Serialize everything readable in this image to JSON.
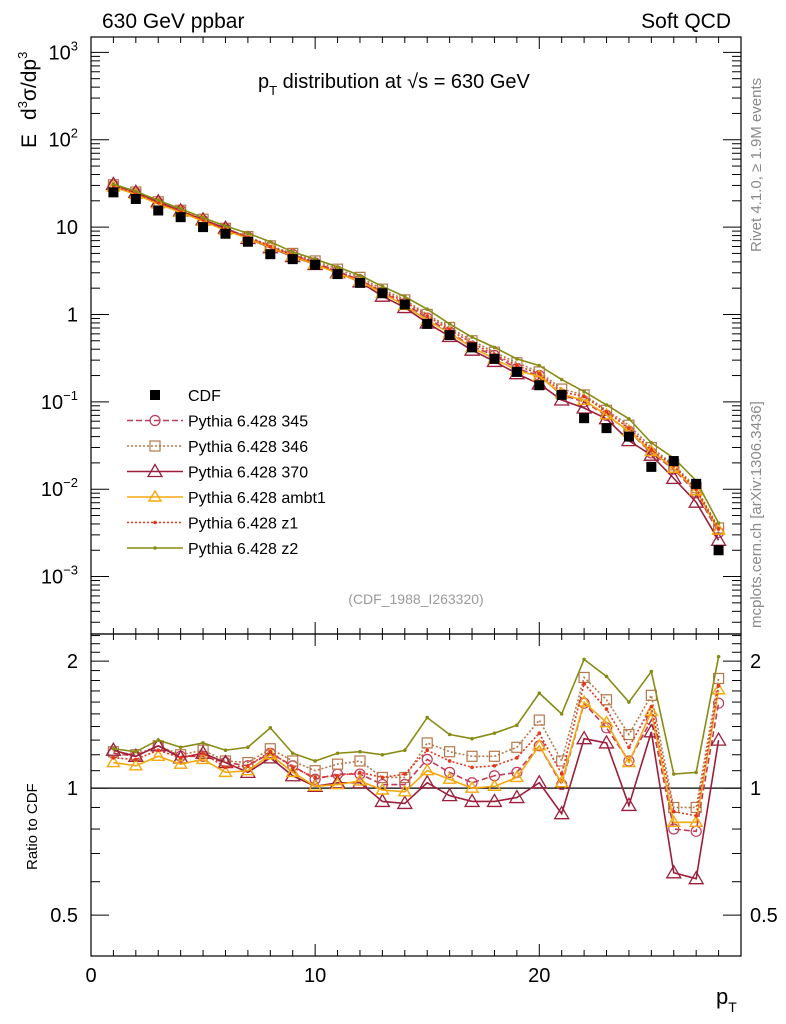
{
  "header": {
    "left_title": "630 GeV ppbar",
    "right_title": "Soft QCD",
    "side_rivet": "Rivet 4.1.0, ≥ 1.9M events",
    "side_url": "mcplots.cern.ch [arXiv:1306.3436]",
    "analysis_tag": "(CDF_1988_I263320)"
  },
  "chart_data": [
    {
      "type": "scatter",
      "title": "p_T distribution at √s = 630 GeV",
      "title_parts": {
        "p": "p",
        "sub": "T",
        "text": " distribution at ",
        "sqrt": "√s",
        "rest": " = 630 GeV"
      },
      "ylabel_parts": {
        "e": "E",
        "d": "d",
        "sup3": "3",
        "sigma": "σ/dp",
        "sup3b": "3"
      },
      "xlabel": "p_T",
      "xlim": [
        0,
        29
      ],
      "ylim": [
        0.00022,
        1500
      ],
      "yscale": "log",
      "yticks": [
        {
          "v": 0.001,
          "base": "10",
          "exp": "−3"
        },
        {
          "v": 0.01,
          "base": "10",
          "exp": "−2"
        },
        {
          "v": 0.1,
          "base": "10",
          "exp": "−1"
        },
        {
          "v": 1,
          "base": "1",
          "exp": ""
        },
        {
          "v": 10,
          "base": "10",
          "exp": ""
        },
        {
          "v": 100,
          "base": "10",
          "exp": "2"
        },
        {
          "v": 1000,
          "base": "10",
          "exp": "3"
        }
      ],
      "x": [
        1,
        2,
        3,
        4,
        5,
        6,
        7,
        8,
        9,
        10,
        11,
        12,
        13,
        14,
        15,
        16,
        17,
        18,
        19,
        20,
        21,
        22,
        23,
        24,
        25,
        26,
        27,
        28
      ],
      "data": {
        "name": "CDF",
        "values": [
          25,
          21,
          15.5,
          13,
          10,
          8.4,
          6.8,
          4.9,
          4.3,
          3.7,
          2.9,
          2.3,
          1.75,
          1.3,
          0.78,
          0.58,
          0.42,
          0.31,
          0.22,
          0.155,
          0.12,
          0.065,
          0.05,
          0.04,
          0.018,
          0.021,
          0.0115,
          0.002
        ]
      },
      "series": [
        {
          "name": "Pythia 6.428 345",
          "color": "#be3c5a",
          "marker": "circle",
          "dash": "6,3",
          "values": [
            30.2,
            24.7,
            19.0,
            15.5,
            11.9,
            9.66,
            7.68,
            5.93,
            4.86,
            3.89,
            3.13,
            2.48,
            1.79,
            1.33,
            0.91,
            0.63,
            0.43,
            0.34,
            0.24,
            0.2,
            0.12,
            0.1,
            0.07,
            0.046,
            0.026,
            0.017,
            0.0091,
            0.0032
          ]
        },
        {
          "name": "Pythia 6.428 346",
          "color": "#b4784a",
          "marker": "square",
          "dash": "2,2",
          "values": [
            30.5,
            25.2,
            19.5,
            15.6,
            12.3,
            9.7,
            7.8,
            6.1,
            5.0,
            4.1,
            3.3,
            2.66,
            1.95,
            1.47,
            1.0,
            0.71,
            0.5,
            0.37,
            0.28,
            0.22,
            0.14,
            0.12,
            0.08,
            0.054,
            0.03,
            0.019,
            0.0104,
            0.0036
          ]
        },
        {
          "name": "Pythia 6.428 370",
          "color": "#9b1e3a",
          "marker": "triangle-open",
          "dash": "",
          "values": [
            30.8,
            25.0,
            19.5,
            15.3,
            12.1,
            9.7,
            7.4,
            5.8,
            4.6,
            3.74,
            3.0,
            2.36,
            1.62,
            1.2,
            0.8,
            0.56,
            0.39,
            0.29,
            0.21,
            0.16,
            0.105,
            0.085,
            0.064,
            0.036,
            0.0245,
            0.0133,
            0.0071,
            0.0026
          ]
        },
        {
          "name": "Pythia 6.428 ambt1",
          "color": "#f5a80f",
          "marker": "triangle-fill",
          "dash": "",
          "values": [
            28.7,
            23.7,
            18.4,
            14.8,
            11.7,
            9.16,
            7.45,
            5.88,
            4.68,
            3.75,
            2.95,
            2.4,
            1.75,
            1.27,
            0.86,
            0.61,
            0.42,
            0.31,
            0.23,
            0.195,
            0.123,
            0.104,
            0.071,
            0.046,
            0.027,
            0.0174,
            0.0096,
            0.0034
          ]
        },
        {
          "name": "Pythia 6.428 z1",
          "color": "#e4361d",
          "marker": "dot",
          "dash": "2,2",
          "values": [
            29.5,
            24.5,
            19.0,
            15.3,
            12.1,
            9.4,
            7.7,
            6.0,
            4.8,
            3.9,
            3.1,
            2.5,
            1.85,
            1.4,
            0.96,
            0.67,
            0.47,
            0.35,
            0.26,
            0.21,
            0.13,
            0.115,
            0.077,
            0.05,
            0.028,
            0.0185,
            0.0099,
            0.0035
          ]
        },
        {
          "name": "Pythia 6.428 z2",
          "color": "#888c14",
          "marker": "dot",
          "dash": "",
          "values": [
            31.0,
            25.7,
            20.2,
            16.2,
            12.8,
            10.3,
            8.5,
            6.8,
            5.2,
            4.3,
            3.5,
            2.8,
            2.1,
            1.6,
            1.15,
            0.78,
            0.55,
            0.42,
            0.31,
            0.26,
            0.18,
            0.131,
            0.092,
            0.064,
            0.034,
            0.0227,
            0.0125,
            0.0041
          ]
        }
      ]
    },
    {
      "type": "line",
      "ylabel": "Ratio to CDF",
      "yscale": "log",
      "ylim": [
        0.4,
        2.32
      ],
      "yticks": [
        {
          "v": 0.5,
          "label": "0.5"
        },
        {
          "v": 1,
          "label": "1"
        },
        {
          "v": 2,
          "label": "2"
        }
      ],
      "xticks": [
        {
          "v": 0,
          "label": "0"
        },
        {
          "v": 10,
          "label": "10"
        },
        {
          "v": 20,
          "label": "20"
        }
      ],
      "xlabel_parts": {
        "p": "p",
        "sub": "T"
      },
      "reference_line": 1,
      "x": [
        1,
        2,
        3,
        4,
        5,
        6,
        7,
        8,
        9,
        10,
        11,
        12,
        13,
        14,
        15,
        16,
        17,
        18,
        19,
        20,
        21,
        22,
        23,
        24,
        25,
        26,
        27,
        28
      ],
      "series": [
        {
          "name": "Pythia 6.428 345",
          "values": [
            1.21,
            1.19,
            1.26,
            1.19,
            1.19,
            1.15,
            1.13,
            1.21,
            1.13,
            1.05,
            1.08,
            1.08,
            1.02,
            1.02,
            1.17,
            1.09,
            1.03,
            1.07,
            1.09,
            1.26,
            1.02,
            1.59,
            1.39,
            1.16,
            1.45,
            0.8,
            0.79,
            1.59
          ]
        },
        {
          "name": "Pythia 6.428 346",
          "values": [
            1.22,
            1.2,
            1.26,
            1.2,
            1.23,
            1.16,
            1.15,
            1.24,
            1.16,
            1.1,
            1.14,
            1.16,
            1.06,
            1.06,
            1.28,
            1.22,
            1.19,
            1.19,
            1.25,
            1.45,
            1.16,
            1.83,
            1.62,
            1.34,
            1.66,
            0.9,
            0.9,
            1.82
          ]
        },
        {
          "name": "Pythia 6.428 370",
          "values": [
            1.23,
            1.19,
            1.26,
            1.18,
            1.21,
            1.15,
            1.09,
            1.18,
            1.07,
            1.01,
            1.03,
            1.03,
            0.93,
            0.92,
            1.03,
            0.96,
            0.93,
            0.93,
            0.95,
            1.03,
            0.87,
            1.31,
            1.28,
            0.91,
            1.36,
            0.63,
            0.61,
            1.3
          ]
        },
        {
          "name": "Pythia 6.428 ambt1",
          "values": [
            1.15,
            1.13,
            1.19,
            1.14,
            1.17,
            1.09,
            1.1,
            1.2,
            1.09,
            1.01,
            1.02,
            1.04,
            0.99,
            0.98,
            1.1,
            1.05,
            1.0,
            1.01,
            1.06,
            1.26,
            1.03,
            1.6,
            1.43,
            1.15,
            1.52,
            0.83,
            0.83,
            1.71
          ]
        },
        {
          "name": "Pythia 6.428 z1",
          "values": [
            1.18,
            1.17,
            1.23,
            1.18,
            1.21,
            1.12,
            1.13,
            1.22,
            1.12,
            1.06,
            1.07,
            1.09,
            1.06,
            1.08,
            1.23,
            1.16,
            1.12,
            1.13,
            1.18,
            1.35,
            1.08,
            1.77,
            1.54,
            1.25,
            1.56,
            0.88,
            0.86,
            1.75
          ]
        },
        {
          "name": "Pythia 6.428 z2",
          "values": [
            1.24,
            1.22,
            1.3,
            1.25,
            1.28,
            1.23,
            1.25,
            1.39,
            1.21,
            1.16,
            1.21,
            1.22,
            1.2,
            1.23,
            1.47,
            1.34,
            1.31,
            1.35,
            1.41,
            1.68,
            1.5,
            2.02,
            1.84,
            1.6,
            1.89,
            1.08,
            1.09,
            2.05
          ]
        }
      ]
    }
  ]
}
